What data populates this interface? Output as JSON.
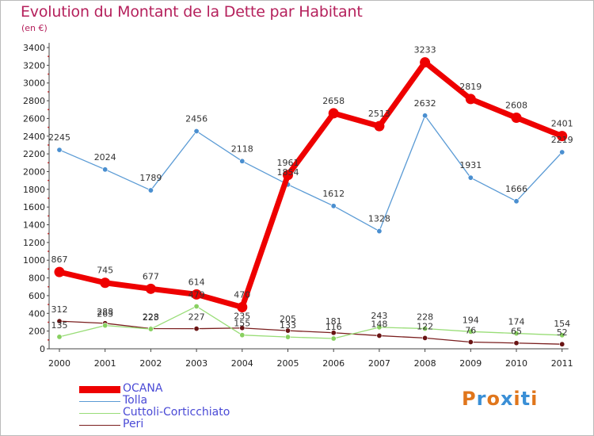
{
  "title": "Evolution du Montant de la Dette par Habitant",
  "subtitle": "(en €)",
  "logo": {
    "text": "Proxiti",
    "letters": [
      {
        "ch": "P",
        "color": "#e0761c"
      },
      {
        "ch": "r",
        "color": "#3a8fd6"
      },
      {
        "ch": "o",
        "color": "#e0761c"
      },
      {
        "ch": "x",
        "color": "#3a8fd6"
      },
      {
        "ch": "i",
        "color": "#e0761c"
      },
      {
        "ch": "t",
        "color": "#3a8fd6"
      },
      {
        "ch": "i",
        "color": "#e0761c"
      }
    ]
  },
  "chart_data": {
    "type": "line",
    "title": "Evolution du Montant de la Dette par Habitant",
    "subtitle": "(en €)",
    "x": [
      "2000",
      "2001",
      "2002",
      "2003",
      "2004",
      "2005",
      "2006",
      "2007",
      "2008",
      "2009",
      "2010",
      "2011"
    ],
    "ylim": [
      0,
      3400
    ],
    "yticks": [
      0,
      200,
      400,
      600,
      800,
      1000,
      1200,
      1400,
      1600,
      1800,
      2000,
      2200,
      2400,
      2600,
      2800,
      3000,
      3200,
      3400
    ],
    "grid": false,
    "legend_position": "bottom-left",
    "series": [
      {
        "name": "OCANA",
        "color": "#ee0000",
        "values": [
          867,
          745,
          677,
          614,
          470,
          1961,
          2658,
          2513,
          3233,
          2819,
          2608,
          2401
        ]
      },
      {
        "name": "Tolla",
        "color": "#5b9bd5",
        "values": [
          2245,
          2024,
          1789,
          2456,
          2118,
          1854,
          1612,
          1328,
          2632,
          1931,
          1666,
          2219
        ]
      },
      {
        "name": "Cuttoli-Corticchiato",
        "color": "#99dd77",
        "values": [
          135,
          263,
          223,
          479,
          155,
          133,
          116,
          243,
          228,
          194,
          174,
          154
        ]
      },
      {
        "name": "Peri",
        "color": "#7a1e1e",
        "values": [
          312,
          288,
          228,
          227,
          235,
          205,
          181,
          148,
          122,
          76,
          65,
          52
        ]
      }
    ]
  }
}
